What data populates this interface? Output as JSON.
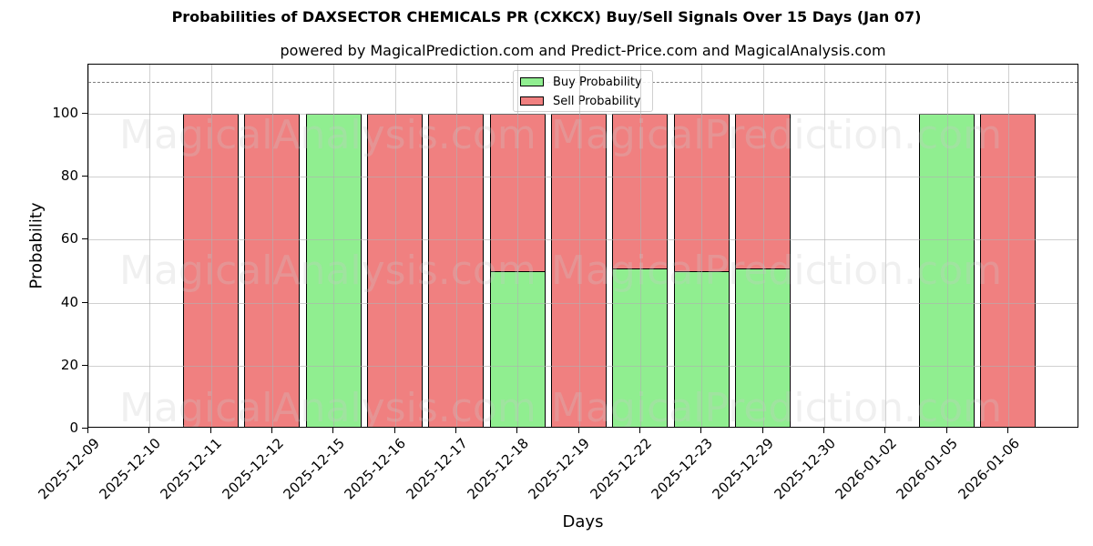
{
  "header": {
    "title": "Probabilities of DAXSECTOR CHEMICALS PR (CXKCX) Buy/Sell Signals Over 15 Days (Jan 07)",
    "subtitle": "powered by MagicalPrediction.com and Predict-Price.com and MagicalAnalysis.com"
  },
  "axes": {
    "xlabel": "Days",
    "ylabel": "Probability",
    "yticks": [
      "0",
      "20",
      "40",
      "60",
      "80",
      "100"
    ]
  },
  "legend": {
    "buy_label": "Buy Probability",
    "sell_label": "Sell Probability"
  },
  "watermarks": [
    "MagicalAnalysis.com",
    "MagicalPrediction.com"
  ],
  "colors": {
    "buy": "#90ee90",
    "sell": "#f08080",
    "threshold_line": "#808080"
  },
  "chart_data": {
    "type": "bar",
    "stacked": true,
    "title": "Probabilities of DAXSECTOR CHEMICALS PR (CXKCX) Buy/Sell Signals Over 15 Days (Jan 07)",
    "subtitle": "powered by MagicalPrediction.com and Predict-Price.com and MagicalAnalysis.com",
    "xlabel": "Days",
    "ylabel": "Probability",
    "ylim": [
      0,
      115
    ],
    "grid": true,
    "legend_position": "upper center",
    "threshold_line": 110,
    "categories": [
      "2025-12-09",
      "2025-12-10",
      "2025-12-11",
      "2025-12-12",
      "2025-12-15",
      "2025-12-16",
      "2025-12-17",
      "2025-12-18",
      "2025-12-19",
      "2025-12-22",
      "2025-12-23",
      "2025-12-29",
      "2025-12-30",
      "2026-01-02",
      "2026-01-05",
      "2026-01-06"
    ],
    "series": [
      {
        "name": "Buy Probability",
        "values": [
          0,
          0,
          0,
          0,
          100,
          0,
          0,
          50,
          0,
          51,
          50,
          51,
          0,
          0,
          100,
          0
        ]
      },
      {
        "name": "Sell Probability",
        "values": [
          0,
          0,
          100,
          100,
          0,
          100,
          100,
          50,
          100,
          49,
          50,
          49,
          0,
          0,
          0,
          100
        ]
      }
    ]
  }
}
